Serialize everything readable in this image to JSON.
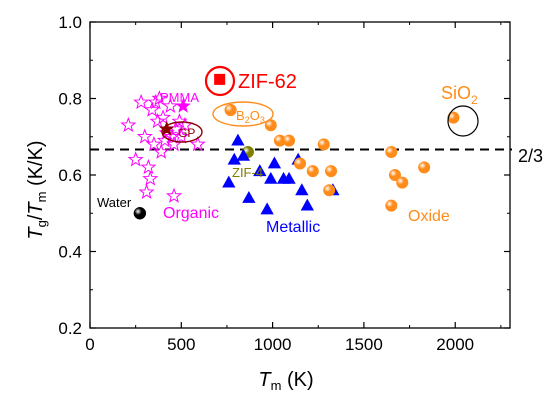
{
  "chart_data": {
    "type": "scatter",
    "title": "",
    "xlabel": {
      "main": "T",
      "sub": "m",
      "unit": " (K)"
    },
    "ylabel": {
      "main1": "T",
      "sub1": "g",
      "slash": "/",
      "main2": "T",
      "sub2": "m",
      "unit": " (K/K)"
    },
    "xlim": [
      0,
      2300
    ],
    "ylim": [
      0.2,
      1.0
    ],
    "xticks": [
      "0",
      "500",
      "1000",
      "1500",
      "2000"
    ],
    "xtick_values": [
      0,
      500,
      1000,
      1500,
      2000
    ],
    "yticks": [
      "0.2",
      "0.4",
      "0.6",
      "0.8",
      "1.0"
    ],
    "ytick_values": [
      0.2,
      0.4,
      0.6,
      0.8,
      1.0
    ],
    "grid": false,
    "reference_line": {
      "y": 0.6667,
      "label": "2/3",
      "style": "dashed",
      "color": "#000000"
    },
    "series": [
      {
        "name": "Organic",
        "marker": "star-open",
        "color": "#ff00ff",
        "points": [
          [
            210,
            0.73
          ],
          [
            250,
            0.64
          ],
          [
            280,
            0.79
          ],
          [
            300,
            0.7
          ],
          [
            320,
            0.62
          ],
          [
            330,
            0.59
          ],
          [
            340,
            0.77
          ],
          [
            350,
            0.68
          ],
          [
            360,
            0.79
          ],
          [
            370,
            0.74
          ],
          [
            380,
            0.8
          ],
          [
            390,
            0.66
          ],
          [
            400,
            0.75
          ],
          [
            410,
            0.69
          ],
          [
            420,
            0.71
          ],
          [
            440,
            0.78
          ],
          [
            450,
            0.7
          ],
          [
            460,
            0.68
          ],
          [
            470,
            0.72
          ],
          [
            490,
            0.74
          ],
          [
            500,
            0.7
          ],
          [
            520,
            0.73
          ],
          [
            590,
            0.68
          ],
          [
            460,
            0.545
          ],
          [
            310,
            0.555
          ]
        ]
      },
      {
        "name": "PMMA",
        "marker": "star-filled",
        "color": "#ff00ff",
        "points": [
          [
            510,
            0.78
          ]
        ]
      },
      {
        "name": "GP",
        "marker": "star-filled",
        "color": "#8b0000",
        "points": [
          [
            420,
            0.72
          ]
        ]
      },
      {
        "name": "Water",
        "marker": "circle",
        "color": "#000000",
        "points": [
          [
            273,
            0.5
          ]
        ]
      },
      {
        "name": "ZIF-62",
        "marker": "square",
        "color": "#ff0000",
        "points": [
          [
            710,
            0.85
          ]
        ]
      },
      {
        "name": "ZIF-4",
        "marker": "circle",
        "color": "#808000",
        "points": [
          [
            865,
            0.66
          ]
        ]
      },
      {
        "name": "Metallic",
        "marker": "triangle",
        "color": "#0000ff",
        "points": [
          [
            760,
            0.58
          ],
          [
            790,
            0.64
          ],
          [
            810,
            0.69
          ],
          [
            840,
            0.65
          ],
          [
            870,
            0.54
          ],
          [
            930,
            0.61
          ],
          [
            970,
            0.51
          ],
          [
            990,
            0.59
          ],
          [
            1010,
            0.63
          ],
          [
            1060,
            0.59
          ],
          [
            1090,
            0.59
          ],
          [
            1140,
            0.64
          ],
          [
            1160,
            0.56
          ],
          [
            1190,
            0.52
          ],
          [
            1330,
            0.56
          ]
        ]
      },
      {
        "name": "Oxide",
        "marker": "circle",
        "color": "#ff8c1a",
        "points": [
          [
            770,
            0.77
          ],
          [
            990,
            0.73
          ],
          [
            1040,
            0.69
          ],
          [
            1090,
            0.69
          ],
          [
            1150,
            0.63
          ],
          [
            1220,
            0.61
          ],
          [
            1280,
            0.68
          ],
          [
            1320,
            0.61
          ],
          [
            1310,
            0.56
          ],
          [
            1650,
            0.66
          ],
          [
            1670,
            0.6
          ],
          [
            1710,
            0.58
          ],
          [
            1650,
            0.52
          ],
          [
            1830,
            0.62
          ]
        ]
      },
      {
        "name": "SiO2",
        "marker": "circle",
        "color": "#ff8c1a",
        "points": [
          [
            1990,
            0.75
          ]
        ]
      },
      {
        "name": "B2O3",
        "marker": "circle",
        "color": "#ff8c1a",
        "points": [
          [
            770,
            0.77
          ]
        ]
      }
    ],
    "annotations": {
      "zif62": {
        "text": "ZIF-62",
        "color": "#ff0000"
      },
      "pmma": {
        "text": "PMMA",
        "color": "#ff00ff"
      },
      "gp": {
        "text": "GP",
        "color": "#8b0000"
      },
      "b2o3": {
        "main": "B",
        "sub": "2",
        "tail": "O",
        "sub2": "3",
        "color": "#ff8c1a"
      },
      "sio2": {
        "main": "SiO",
        "sub": "2",
        "color": "#ff8c1a"
      },
      "zif4": {
        "text": "ZIF-4",
        "color": "#808000"
      },
      "water": {
        "text": "Water",
        "color": "#000000"
      },
      "organic": {
        "text": "Organic",
        "color": "#ff00ff"
      },
      "metallic": {
        "text": "Metallic",
        "color": "#0000ff"
      },
      "oxide": {
        "text": "Oxide",
        "color": "#ff8c1a"
      }
    }
  }
}
